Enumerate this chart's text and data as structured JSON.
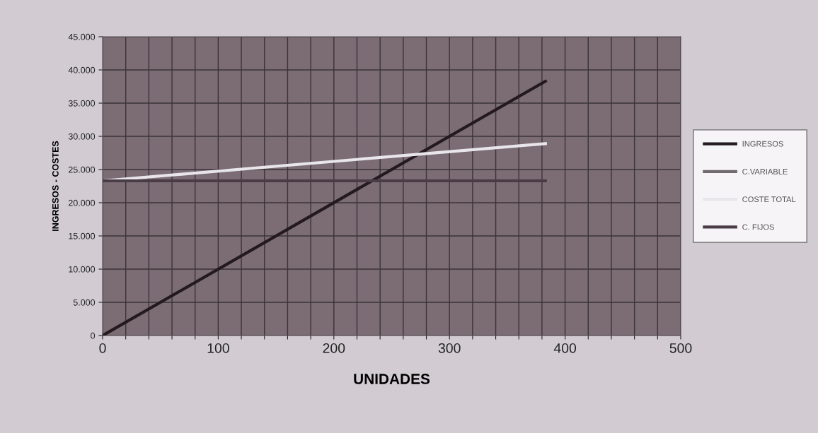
{
  "chart_data": {
    "type": "line",
    "xlabel": "UNIDADES",
    "ylabel": "INGRESOS - COSTES",
    "x": [
      0,
      383
    ],
    "series": [
      {
        "name": "INGRESOS",
        "color": "#231a1e",
        "values": [
          0,
          38300
        ]
      },
      {
        "name": "C.VARIABLE",
        "color": "#6e6a6e",
        "values": [
          null,
          null
        ]
      },
      {
        "name": "COSTE TOTAL",
        "color": "#e8e6ea",
        "values": [
          23300,
          28900
        ]
      },
      {
        "name": "C. FIJOS",
        "color": "#4a3c44",
        "values": [
          23300,
          23300
        ]
      }
    ],
    "xlim": [
      0,
      500
    ],
    "xticks": [
      0,
      {
        "value": 20,
        "label": null
      },
      {
        "value": 40,
        "label": null
      },
      {
        "value": 60,
        "label": null
      },
      {
        "value": 80,
        "label": null
      },
      100,
      {
        "value": 120,
        "label": null
      },
      {
        "value": 140,
        "label": null
      },
      {
        "value": 160,
        "label": null
      },
      {
        "value": 180,
        "label": null
      },
      200,
      {
        "value": 220,
        "label": null
      },
      {
        "value": 240,
        "label": null
      },
      {
        "value": 260,
        "label": null
      },
      {
        "value": 280,
        "label": null
      },
      300,
      {
        "value": 320,
        "label": null
      },
      {
        "value": 340,
        "label": null
      },
      {
        "value": 360,
        "label": null
      },
      {
        "value": 380,
        "label": null
      },
      400,
      {
        "value": 420,
        "label": null
      },
      {
        "value": 440,
        "label": null
      },
      {
        "value": 460,
        "label": null
      },
      {
        "value": 480,
        "label": null
      },
      500
    ],
    "ylim": [
      0,
      45000
    ],
    "yticks": [
      0,
      {
        "value": 5000,
        "label": "5.000"
      },
      {
        "value": 10000,
        "label": "10.000"
      },
      {
        "value": 15000,
        "label": "15.000"
      },
      {
        "value": 20000,
        "label": "20.000"
      },
      {
        "value": 25000,
        "label": "25.000"
      },
      {
        "value": 30000,
        "label": "30.000"
      },
      {
        "value": 35000,
        "label": "35.000"
      },
      {
        "value": 40000,
        "label": "40.000"
      },
      {
        "value": 45000,
        "label": "45.000"
      }
    ],
    "grid": true,
    "legend": "right",
    "marker": "none",
    "line_style": "solid"
  }
}
